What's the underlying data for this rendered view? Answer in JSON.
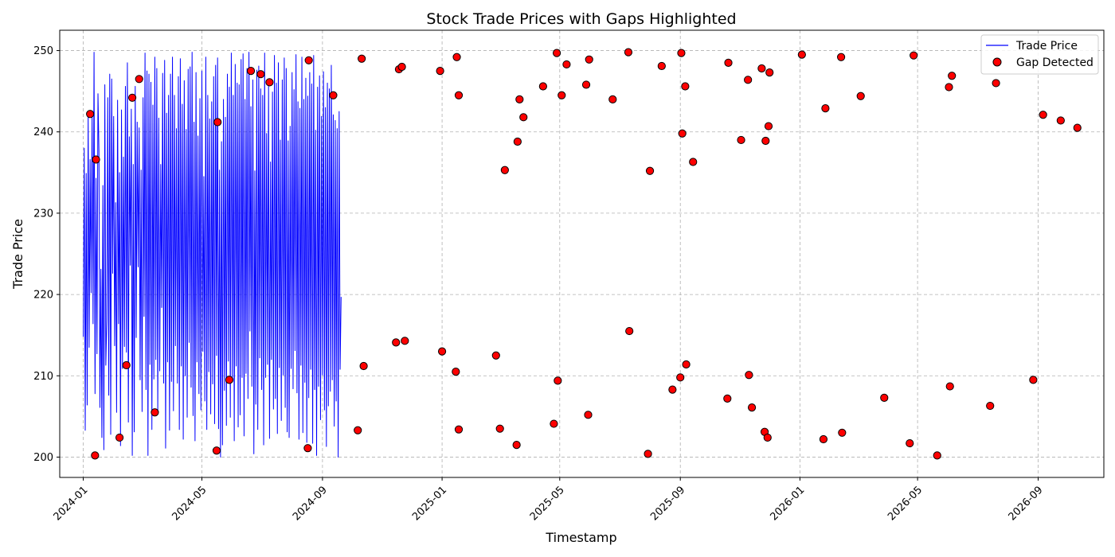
{
  "chart_data": {
    "type": "line",
    "title": "Stock Trade Prices with Gaps Highlighted",
    "xlabel": "Timestamp",
    "ylabel": "Trade Price",
    "x_range": [
      "2023-12-08",
      "2026-11-07"
    ],
    "ylim": [
      197.5,
      252.5
    ],
    "y_ticks": [
      200,
      210,
      220,
      230,
      240,
      250
    ],
    "x_ticks": [
      {
        "date": "2024-01-01",
        "label": "2024-01"
      },
      {
        "date": "2024-05-01",
        "label": "2024-05"
      },
      {
        "date": "2024-09-01",
        "label": "2024-09"
      },
      {
        "date": "2025-01-01",
        "label": "2025-01"
      },
      {
        "date": "2025-05-01",
        "label": "2025-05"
      },
      {
        "date": "2025-09-01",
        "label": "2025-09"
      },
      {
        "date": "2026-01-01",
        "label": "2026-01"
      },
      {
        "date": "2026-05-01",
        "label": "2026-05"
      },
      {
        "date": "2026-09-01",
        "label": "2026-09"
      }
    ],
    "grid": true,
    "legend_position": "top-right",
    "series": [
      {
        "name": "Trade Price",
        "kind": "line",
        "color": "#0000ff",
        "start": "2024-01-01",
        "step_days": 1,
        "values": [
          214.8,
          238.0,
          203.3,
          234.9,
          206.4,
          242.2,
          213.5,
          236.6,
          220.2,
          242.1,
          216.4,
          249.8,
          207.8,
          234.3,
          212.7,
          244.7,
          237.6,
          206.1,
          223.1,
          202.4,
          233.4,
          200.9,
          245.8,
          211.3,
          216.8,
          244.2,
          207.6,
          247.1,
          202.8,
          246.5,
          222.6,
          241.9,
          213.7,
          231.3,
          205.5,
          243.9,
          216.4,
          235.0,
          201.4,
          242.7,
          210.9,
          236.9,
          213.6,
          245.6,
          212.9,
          248.5,
          204.3,
          239.4,
          223.6,
          242.8,
          200.2,
          236.0,
          203.1,
          245.6,
          214.7,
          241.2,
          223.4,
          240.5,
          209.5,
          235.3,
          205.6,
          244.2,
          217.3,
          249.7,
          208.3,
          247.5,
          200.2,
          247.1,
          211.4,
          246.1,
          203.4,
          243.3,
          209.6,
          249.2,
          212.0,
          247.8,
          205.4,
          241.7,
          210.6,
          236.0,
          218.4,
          247.2,
          209.1,
          248.8,
          201.1,
          242.3,
          211.7,
          244.5,
          203.3,
          247.1,
          209.3,
          249.2,
          205.7,
          244.5,
          213.7,
          240.4,
          209.1,
          246.8,
          203.4,
          249.0,
          211.2,
          243.4,
          202.2,
          246.3,
          210.0,
          240.3,
          204.9,
          247.7,
          214.1,
          248.0,
          208.6,
          249.8,
          205.1,
          241.2,
          202.0,
          247.3,
          211.7,
          239.5,
          207.8,
          244.1,
          205.8,
          247.5,
          213.0,
          234.5,
          206.9,
          249.2,
          203.4,
          244.5,
          210.5,
          241.6,
          205.3,
          243.7,
          209.0,
          246.8,
          204.1,
          248.2,
          212.5,
          249.1,
          203.5,
          235.3,
          200.0,
          238.8,
          201.5,
          244.0,
          208.2,
          241.8,
          203.9,
          247.1,
          211.8,
          245.5,
          204.9,
          249.7,
          209.4,
          244.5,
          202.0,
          248.3,
          211.2,
          246.0,
          203.7,
          245.8,
          205.2,
          248.9,
          209.8,
          249.6,
          202.6,
          244.0,
          210.3,
          247.8,
          207.2,
          249.8,
          215.5,
          243.1,
          208.7,
          246.4,
          200.4,
          235.2,
          206.5,
          247.6,
          203.4,
          248.1,
          212.2,
          245.3,
          208.3,
          244.5,
          201.5,
          249.7,
          209.8,
          239.8,
          211.4,
          245.6,
          202.3,
          236.3,
          212.0,
          244.9,
          205.9,
          249.4,
          207.2,
          246.0,
          202.9,
          248.5,
          211.0,
          239.0,
          204.5,
          246.4,
          210.1,
          249.1,
          206.1,
          247.8,
          203.1,
          238.9,
          202.4,
          240.7,
          210.9,
          247.3,
          208.4,
          245.2,
          213.1,
          249.5,
          207.9,
          243.7,
          202.2,
          242.9,
          211.3,
          249.2,
          203.0,
          244.0,
          209.2,
          246.6,
          201.8,
          244.4,
          207.3,
          247.3,
          210.8,
          245.9,
          201.7,
          249.4,
          208.3,
          240.2,
          200.2,
          245.5,
          208.7,
          246.9,
          204.6,
          241.9,
          210.1,
          247.4,
          205.8,
          243.0,
          201.3,
          246.0,
          206.3,
          245.3,
          208.1,
          248.2,
          209.5,
          242.1,
          203.8,
          241.4,
          206.9,
          240.4,
          200.0,
          242.5,
          210.8,
          219.7
        ]
      },
      {
        "name": "Gap Detected",
        "kind": "scatter",
        "color": "#ff0000",
        "edgecolor": "#000000",
        "points": [
          {
            "x": "2024-01-08",
            "y": 242.2
          },
          {
            "x": "2024-01-13",
            "y": 200.2
          },
          {
            "x": "2024-01-14",
            "y": 236.6
          },
          {
            "x": "2024-02-07",
            "y": 202.4
          },
          {
            "x": "2024-02-14",
            "y": 211.3
          },
          {
            "x": "2024-02-20",
            "y": 244.2
          },
          {
            "x": "2024-02-27",
            "y": 246.5
          },
          {
            "x": "2024-03-14",
            "y": 205.5
          },
          {
            "x": "2024-05-16",
            "y": 200.8
          },
          {
            "x": "2024-05-17",
            "y": 241.2
          },
          {
            "x": "2024-05-29",
            "y": 209.5
          },
          {
            "x": "2024-06-20",
            "y": 247.5
          },
          {
            "x": "2024-06-30",
            "y": 247.1
          },
          {
            "x": "2024-07-09",
            "y": 246.1
          },
          {
            "x": "2024-08-17",
            "y": 201.1
          },
          {
            "x": "2024-08-18",
            "y": 248.8
          },
          {
            "x": "2024-09-12",
            "y": 244.5
          },
          {
            "x": "2024-10-07",
            "y": 203.3
          },
          {
            "x": "2024-10-11",
            "y": 249.0
          },
          {
            "x": "2024-10-13",
            "y": 211.2
          },
          {
            "x": "2024-11-15",
            "y": 214.1
          },
          {
            "x": "2024-11-18",
            "y": 247.7
          },
          {
            "x": "2024-11-21",
            "y": 248.0
          },
          {
            "x": "2024-11-24",
            "y": 214.3
          },
          {
            "x": "2024-12-30",
            "y": 247.5
          },
          {
            "x": "2025-01-01",
            "y": 213.0
          },
          {
            "x": "2025-01-15",
            "y": 210.5
          },
          {
            "x": "2025-01-16",
            "y": 249.2
          },
          {
            "x": "2025-01-18",
            "y": 244.5
          },
          {
            "x": "2025-01-18",
            "y": 203.4
          },
          {
            "x": "2025-02-25",
            "y": 212.5
          },
          {
            "x": "2025-03-01",
            "y": 203.5
          },
          {
            "x": "2025-03-06",
            "y": 235.3
          },
          {
            "x": "2025-03-18",
            "y": 201.5
          },
          {
            "x": "2025-03-19",
            "y": 238.8
          },
          {
            "x": "2025-03-21",
            "y": 244.0
          },
          {
            "x": "2025-03-25",
            "y": 241.8
          },
          {
            "x": "2025-04-14",
            "y": 245.6
          },
          {
            "x": "2025-04-25",
            "y": 204.1
          },
          {
            "x": "2025-04-28",
            "y": 249.7
          },
          {
            "x": "2025-04-29",
            "y": 209.4
          },
          {
            "x": "2025-05-03",
            "y": 244.5
          },
          {
            "x": "2025-05-08",
            "y": 248.3
          },
          {
            "x": "2025-05-28",
            "y": 245.8
          },
          {
            "x": "2025-05-30",
            "y": 205.2
          },
          {
            "x": "2025-05-31",
            "y": 248.9
          },
          {
            "x": "2025-06-24",
            "y": 244.0
          },
          {
            "x": "2025-07-10",
            "y": 249.8
          },
          {
            "x": "2025-07-11",
            "y": 215.5
          },
          {
            "x": "2025-07-30",
            "y": 200.4
          },
          {
            "x": "2025-08-01",
            "y": 235.2
          },
          {
            "x": "2025-08-13",
            "y": 248.1
          },
          {
            "x": "2025-08-24",
            "y": 208.3
          },
          {
            "x": "2025-09-01",
            "y": 209.8
          },
          {
            "x": "2025-09-02",
            "y": 249.7
          },
          {
            "x": "2025-09-03",
            "y": 239.8
          },
          {
            "x": "2025-09-06",
            "y": 245.6
          },
          {
            "x": "2025-09-07",
            "y": 211.4
          },
          {
            "x": "2025-09-14",
            "y": 236.3
          },
          {
            "x": "2025-10-19",
            "y": 207.2
          },
          {
            "x": "2025-10-20",
            "y": 248.5
          },
          {
            "x": "2025-11-02",
            "y": 239.0
          },
          {
            "x": "2025-11-09",
            "y": 246.4
          },
          {
            "x": "2025-11-10",
            "y": 210.1
          },
          {
            "x": "2025-11-13",
            "y": 206.1
          },
          {
            "x": "2025-11-23",
            "y": 247.8
          },
          {
            "x": "2025-11-26",
            "y": 203.1
          },
          {
            "x": "2025-11-27",
            "y": 238.9
          },
          {
            "x": "2025-11-29",
            "y": 202.4
          },
          {
            "x": "2025-11-30",
            "y": 240.7
          },
          {
            "x": "2025-12-01",
            "y": 247.3
          },
          {
            "x": "2026-01-03",
            "y": 249.5
          },
          {
            "x": "2026-01-25",
            "y": 202.2
          },
          {
            "x": "2026-01-27",
            "y": 242.9
          },
          {
            "x": "2026-02-12",
            "y": 249.2
          },
          {
            "x": "2026-02-13",
            "y": 203.0
          },
          {
            "x": "2026-03-04",
            "y": 244.4
          },
          {
            "x": "2026-03-28",
            "y": 207.3
          },
          {
            "x": "2026-04-23",
            "y": 201.7
          },
          {
            "x": "2026-04-27",
            "y": 249.4
          },
          {
            "x": "2026-05-21",
            "y": 200.2
          },
          {
            "x": "2026-06-02",
            "y": 245.5
          },
          {
            "x": "2026-06-03",
            "y": 208.7
          },
          {
            "x": "2026-06-05",
            "y": 246.9
          },
          {
            "x": "2026-07-14",
            "y": 206.3
          },
          {
            "x": "2026-07-20",
            "y": 246.0
          },
          {
            "x": "2026-08-27",
            "y": 209.5
          },
          {
            "x": "2026-09-06",
            "y": 242.1
          },
          {
            "x": "2026-09-24",
            "y": 241.4
          },
          {
            "x": "2026-10-11",
            "y": 240.5
          }
        ]
      }
    ]
  }
}
